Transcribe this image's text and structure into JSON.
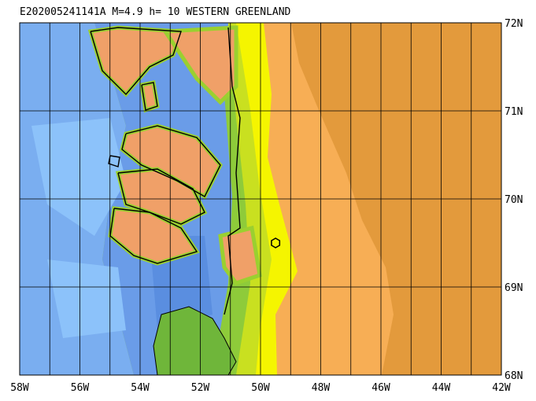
{
  "map": {
    "title": "E202005241141A M=4.9 h= 10 WESTERN GREENLAND",
    "xlim": [
      -58,
      -42
    ],
    "ylim": [
      68,
      72
    ],
    "xticks": [
      {
        "value": -58,
        "label": "58W"
      },
      {
        "value": -56,
        "label": "56W"
      },
      {
        "value": -54,
        "label": "54W"
      },
      {
        "value": -52,
        "label": "52W"
      },
      {
        "value": -50,
        "label": "50W"
      },
      {
        "value": -48,
        "label": "48W"
      },
      {
        "value": -46,
        "label": "46W"
      },
      {
        "value": -44,
        "label": "44W"
      },
      {
        "value": -42,
        "label": "42W"
      }
    ],
    "yticks": [
      {
        "value": 72,
        "label": "72N"
      },
      {
        "value": 71,
        "label": "71N"
      },
      {
        "value": 70,
        "label": "70N"
      },
      {
        "value": 69,
        "label": "69N"
      },
      {
        "value": 68,
        "label": "68N"
      }
    ],
    "event": {
      "lon": -49.5,
      "lat": 69.5
    }
  }
}
